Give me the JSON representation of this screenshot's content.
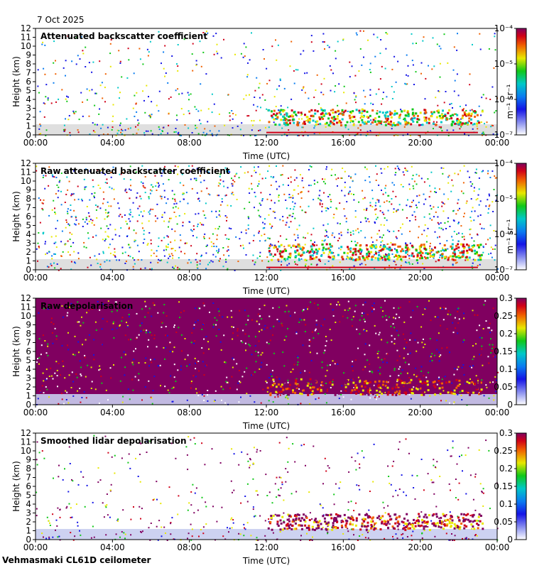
{
  "date_label": "7 Oct 2025",
  "footer": "Vehmasmaki CL61D ceilometer",
  "chart_data": [
    {
      "type": "heatmap",
      "title": "Attenuated backscatter coefficient",
      "xlabel": "Time (UTC)",
      "ylabel": "Height (km)",
      "xticks": [
        "00:00",
        "04:00",
        "08:00",
        "12:00",
        "16:00",
        "20:00",
        "00:00"
      ],
      "yticks": [
        "0",
        "1",
        "2",
        "3",
        "4",
        "5",
        "6",
        "7",
        "8",
        "9",
        "10",
        "11",
        "12"
      ],
      "ylim": [
        0,
        12
      ],
      "colorbar": {
        "scale": "log",
        "range": [
          1e-07,
          0.0001
        ],
        "tick_labels": [
          "10⁻⁷",
          "10⁻⁶",
          "10⁻⁵",
          "10⁻⁴"
        ],
        "unit": "m⁻¹ sr⁻¹"
      }
    },
    {
      "type": "heatmap",
      "title": "Raw attenuated backscatter coefficient",
      "xlabel": "Time (UTC)",
      "ylabel": "Height (km)",
      "xticks": [
        "00:00",
        "04:00",
        "08:00",
        "12:00",
        "16:00",
        "20:00",
        "00:00"
      ],
      "yticks": [
        "0",
        "1",
        "2",
        "3",
        "4",
        "5",
        "6",
        "7",
        "8",
        "9",
        "10",
        "11",
        "12"
      ],
      "ylim": [
        0,
        12
      ],
      "colorbar": {
        "scale": "log",
        "range": [
          1e-07,
          0.0001
        ],
        "tick_labels": [
          "10⁻⁷",
          "10⁻⁶",
          "10⁻⁵",
          "10⁻⁴"
        ],
        "unit": "m⁻¹ sr⁻¹"
      }
    },
    {
      "type": "heatmap",
      "title": "Raw depolarisation",
      "xlabel": "Time (UTC)",
      "ylabel": "Height (km)",
      "xticks": [
        "00:00",
        "04:00",
        "08:00",
        "12:00",
        "16:00",
        "20:00",
        "00:00"
      ],
      "yticks": [
        "0",
        "1",
        "2",
        "3",
        "4",
        "5",
        "6",
        "7",
        "8",
        "9",
        "10",
        "11",
        "12"
      ],
      "ylim": [
        0,
        12
      ],
      "colorbar": {
        "scale": "linear",
        "range": [
          0,
          0.3
        ],
        "tick_labels": [
          "0",
          "0.05",
          "0.1",
          "0.15",
          "0.2",
          "0.25",
          "0.3"
        ],
        "unit": ""
      }
    },
    {
      "type": "heatmap",
      "title": "Smoothed lidar depolarisation",
      "xlabel": "Time (UTC)",
      "ylabel": "Height (km)",
      "xticks": [
        "00:00",
        "04:00",
        "08:00",
        "12:00",
        "16:00",
        "20:00",
        "00:00"
      ],
      "yticks": [
        "0",
        "1",
        "2",
        "3",
        "4",
        "5",
        "6",
        "7",
        "8",
        "9",
        "10",
        "11",
        "12"
      ],
      "ylim": [
        0,
        12
      ],
      "colorbar": {
        "scale": "linear",
        "range": [
          0,
          0.3
        ],
        "tick_labels": [
          "0",
          "0.05",
          "0.1",
          "0.15",
          "0.2",
          "0.25",
          "0.3"
        ],
        "unit": ""
      }
    }
  ]
}
